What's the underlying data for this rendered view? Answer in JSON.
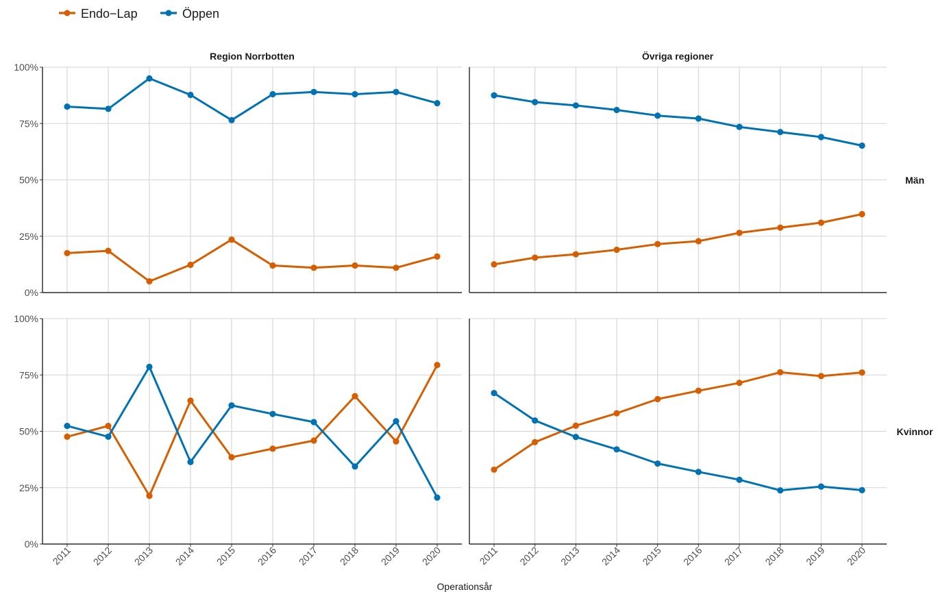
{
  "chart_data": {
    "type": "line",
    "legend": {
      "position": "top-left",
      "entries": [
        "Endo−Lap",
        "Öppen"
      ]
    },
    "x_title": "Operationsår",
    "column_titles": [
      "Region Norrbotten",
      "Övriga regioner"
    ],
    "row_titles": [
      "Män",
      "Kvinnor"
    ],
    "categories": [
      "2011",
      "2012",
      "2013",
      "2014",
      "2015",
      "2016",
      "2017",
      "2018",
      "2019",
      "2020"
    ],
    "y_ticks": [
      "0%",
      "25%",
      "50%",
      "75%",
      "100%"
    ],
    "ylim": [
      0,
      100
    ],
    "grid": true,
    "colors": {
      "Endo−Lap": "#D55E00",
      "Öppen": "#0072B2",
      "grid": "#d3d3d3"
    },
    "panels": [
      {
        "column": "Region Norrbotten",
        "row": "Män",
        "series": [
          {
            "name": "Endo−Lap",
            "values": [
              17.5,
              18.5,
              5,
              12.3,
              23.5,
              12,
              11,
              12,
              11,
              16
            ]
          },
          {
            "name": "Öppen",
            "values": [
              82.5,
              81.5,
              95,
              87.7,
              76.5,
              88,
              89,
              88,
              89,
              84
            ]
          }
        ]
      },
      {
        "column": "Övriga regioner",
        "row": "Män",
        "series": [
          {
            "name": "Endo−Lap",
            "values": [
              12.5,
              15.5,
              17,
              19,
              21.5,
              22.8,
              26.5,
              28.8,
              31,
              34.8
            ]
          },
          {
            "name": "Öppen",
            "values": [
              87.5,
              84.5,
              83,
              81,
              78.5,
              77.2,
              73.5,
              71.2,
              69,
              65.2
            ]
          }
        ]
      },
      {
        "column": "Region Norrbotten",
        "row": "Kvinnor",
        "series": [
          {
            "name": "Endo−Lap",
            "values": [
              47.6,
              52.4,
              21.4,
              63.6,
              38.5,
              42.3,
              45.9,
              65.6,
              45.5,
              79.4
            ]
          },
          {
            "name": "Öppen",
            "values": [
              52.4,
              47.6,
              78.6,
              36.4,
              61.5,
              57.7,
              54.1,
              34.4,
              54.5,
              20.6
            ]
          }
        ]
      },
      {
        "column": "Övriga regioner",
        "row": "Kvinnor",
        "series": [
          {
            "name": "Endo−Lap",
            "values": [
              33,
              45.2,
              52.5,
              58,
              64.3,
              68,
              71.5,
              76.2,
              74.5,
              76.1
            ]
          },
          {
            "name": "Öppen",
            "values": [
              67,
              54.8,
              47.5,
              42,
              35.7,
              32,
              28.5,
              23.8,
              25.5,
              23.9
            ]
          }
        ]
      }
    ]
  }
}
